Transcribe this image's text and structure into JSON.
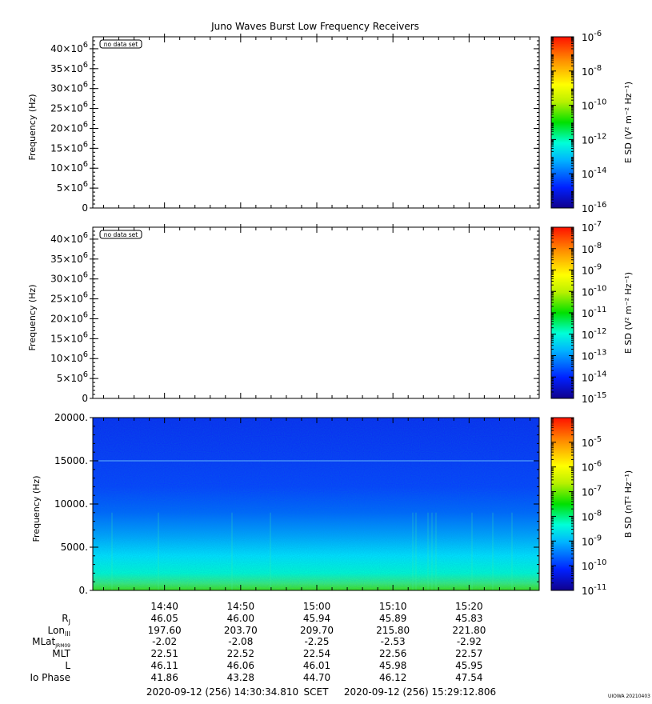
{
  "title": "Juno Waves Burst Low Frequency Receivers",
  "credit": "UIOWA 20210403",
  "chart_data": [
    {
      "type": "heatmap",
      "panel": "top",
      "title": "",
      "xlabel": "",
      "ylabel": "Frequency (Hz)",
      "ylim": [
        0,
        43000000
      ],
      "yticks": [
        {
          "value": 0,
          "mant": "0",
          "exp": ""
        },
        {
          "value": 5000000,
          "mant": "5×10",
          "exp": "6"
        },
        {
          "value": 10000000,
          "mant": "10×10",
          "exp": "6"
        },
        {
          "value": 15000000,
          "mant": "15×10",
          "exp": "6"
        },
        {
          "value": 20000000,
          "mant": "20×10",
          "exp": "6"
        },
        {
          "value": 25000000,
          "mant": "25×10",
          "exp": "6"
        },
        {
          "value": 30000000,
          "mant": "30×10",
          "exp": "6"
        },
        {
          "value": 35000000,
          "mant": "35×10",
          "exp": "6"
        },
        {
          "value": 40000000,
          "mant": "40×10",
          "exp": "6"
        }
      ],
      "annotation": "no data set",
      "colorbar": {
        "label": "E SD",
        "units": "V² m⁻² Hz⁻¹",
        "scale": "log",
        "range": [
          1e-16,
          1e-06
        ],
        "ticks": [
          {
            "mant": "10",
            "exp": "-6",
            "value": 1e-06
          },
          {
            "mant": "10",
            "exp": "-8",
            "value": 1e-08
          },
          {
            "mant": "10",
            "exp": "-10",
            "value": 1e-10
          },
          {
            "mant": "10",
            "exp": "-12",
            "value": 1e-12
          },
          {
            "mant": "10",
            "exp": "-14",
            "value": 1e-14
          },
          {
            "mant": "10",
            "exp": "-16",
            "value": 1e-16
          }
        ]
      },
      "data": []
    },
    {
      "type": "heatmap",
      "panel": "middle",
      "title": "",
      "xlabel": "",
      "ylabel": "Frequency (Hz)",
      "ylim": [
        0,
        43000000
      ],
      "yticks": [
        {
          "value": 0,
          "mant": "0",
          "exp": ""
        },
        {
          "value": 5000000,
          "mant": "5×10",
          "exp": "6"
        },
        {
          "value": 10000000,
          "mant": "10×10",
          "exp": "6"
        },
        {
          "value": 15000000,
          "mant": "15×10",
          "exp": "6"
        },
        {
          "value": 20000000,
          "mant": "20×10",
          "exp": "6"
        },
        {
          "value": 25000000,
          "mant": "25×10",
          "exp": "6"
        },
        {
          "value": 30000000,
          "mant": "30×10",
          "exp": "6"
        },
        {
          "value": 35000000,
          "mant": "35×10",
          "exp": "6"
        },
        {
          "value": 40000000,
          "mant": "40×10",
          "exp": "6"
        }
      ],
      "annotation": "no data set",
      "colorbar": {
        "label": "E SD",
        "units": "V² m⁻² Hz⁻¹",
        "scale": "log",
        "range": [
          1e-15,
          1e-07
        ],
        "ticks": [
          {
            "mant": "10",
            "exp": "-7",
            "value": 1e-07
          },
          {
            "mant": "10",
            "exp": "-8",
            "value": 1e-08
          },
          {
            "mant": "10",
            "exp": "-9",
            "value": 1e-09
          },
          {
            "mant": "10",
            "exp": "-10",
            "value": 1e-10
          },
          {
            "mant": "10",
            "exp": "-11",
            "value": 1e-11
          },
          {
            "mant": "10",
            "exp": "-12",
            "value": 1e-12
          },
          {
            "mant": "10",
            "exp": "-13",
            "value": 1e-13
          },
          {
            "mant": "10",
            "exp": "-14",
            "value": 1e-14
          },
          {
            "mant": "10",
            "exp": "-15",
            "value": 1e-15
          }
        ]
      },
      "data": []
    },
    {
      "type": "heatmap",
      "panel": "bottom",
      "title": "",
      "xlabel": "",
      "ylabel": "Frequency (Hz)",
      "ylim": [
        0,
        20000
      ],
      "yticks": [
        {
          "value": 0,
          "mant": "0.",
          "exp": ""
        },
        {
          "value": 5000,
          "mant": "5000.",
          "exp": ""
        },
        {
          "value": 10000,
          "mant": "10000.",
          "exp": ""
        },
        {
          "value": 15000,
          "mant": "15000.",
          "exp": ""
        },
        {
          "value": 20000,
          "mant": "20000.",
          "exp": ""
        }
      ],
      "annotation": "",
      "colorbar": {
        "label": "B SD",
        "units": "nT² Hz⁻¹",
        "scale": "log",
        "range": [
          1e-11,
          0.0001
        ],
        "ticks": [
          {
            "mant": "10",
            "exp": "-5",
            "value": 1e-05
          },
          {
            "mant": "10",
            "exp": "-6",
            "value": 1e-06
          },
          {
            "mant": "10",
            "exp": "-7",
            "value": 1e-07
          },
          {
            "mant": "10",
            "exp": "-8",
            "value": 1e-08
          },
          {
            "mant": "10",
            "exp": "-9",
            "value": 1e-09
          },
          {
            "mant": "10",
            "exp": "-10",
            "value": 1e-10
          },
          {
            "mant": "10",
            "exp": "-11",
            "value": 1e-11
          }
        ]
      },
      "spectrogram": {
        "line_frequency_hz": 15000,
        "intensity_by_frequency": [
          {
            "freq_hz": 0,
            "log10_value": -7.9
          },
          {
            "freq_hz": 1000,
            "log10_value": -8.3
          },
          {
            "freq_hz": 2000,
            "log10_value": -8.7
          },
          {
            "freq_hz": 3500,
            "log10_value": -9.1
          },
          {
            "freq_hz": 5000,
            "log10_value": -9.5
          },
          {
            "freq_hz": 6500,
            "log10_value": -9.9
          },
          {
            "freq_hz": 8500,
            "log10_value": -10.3
          },
          {
            "freq_hz": 11000,
            "log10_value": -10.6
          },
          {
            "freq_hz": 15000,
            "log10_value": -10.8
          },
          {
            "freq_hz": 20000,
            "log10_value": -10.9
          }
        ]
      }
    }
  ],
  "time_axis": {
    "start_min": 870.58,
    "end_min": 929.21,
    "ticks": [
      {
        "label": "14:40",
        "min": 880
      },
      {
        "label": "14:50",
        "min": 890
      },
      {
        "label": "15:00",
        "min": 900
      },
      {
        "label": "15:10",
        "min": 910
      },
      {
        "label": "15:20",
        "min": 920
      }
    ]
  },
  "ephemeris": {
    "labels": [
      {
        "name": "R",
        "sub": "J"
      },
      {
        "name": "Lon",
        "sub": "III"
      },
      {
        "name": "MLat",
        "sub": "JRM09"
      },
      {
        "name": "MLT",
        "sub": ""
      },
      {
        "name": "L",
        "sub": ""
      },
      {
        "name": "Io Phase",
        "sub": ""
      }
    ],
    "rows": [
      [
        "46.05",
        "46.00",
        "45.94",
        "45.89",
        "45.83"
      ],
      [
        "197.60",
        "203.70",
        "209.70",
        "215.80",
        "221.80"
      ],
      [
        "-2.02",
        "-2.08",
        "-2.25",
        "-2.53",
        "-2.92"
      ],
      [
        "22.51",
        "22.52",
        "22.54",
        "22.56",
        "22.57"
      ],
      [
        "46.11",
        "46.06",
        "46.01",
        "45.98",
        "45.95"
      ],
      [
        "41.86",
        "43.28",
        "44.70",
        "46.12",
        "47.54"
      ]
    ]
  },
  "time_range": {
    "start": "2020-09-12 (256) 14:30:34.810",
    "label": "SCET",
    "end": "2020-09-12 (256) 15:29:12.806"
  }
}
